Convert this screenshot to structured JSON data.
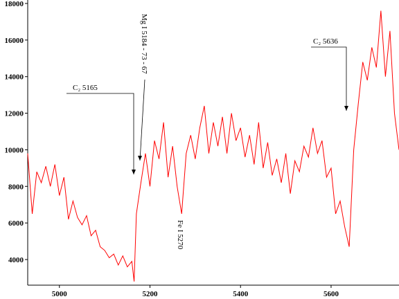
{
  "chart_data": {
    "type": "line",
    "x": [
      4930,
      4940,
      4950,
      4960,
      4970,
      4980,
      4990,
      5000,
      5010,
      5020,
      5030,
      5040,
      5050,
      5060,
      5070,
      5080,
      5090,
      5100,
      5110,
      5120,
      5130,
      5140,
      5150,
      5160,
      5165,
      5170,
      5180,
      5190,
      5200,
      5210,
      5220,
      5230,
      5240,
      5250,
      5260,
      5270,
      5280,
      5290,
      5300,
      5310,
      5320,
      5330,
      5340,
      5350,
      5360,
      5370,
      5380,
      5390,
      5400,
      5410,
      5420,
      5430,
      5440,
      5450,
      5460,
      5470,
      5480,
      5490,
      5500,
      5510,
      5520,
      5530,
      5540,
      5550,
      5560,
      5570,
      5580,
      5590,
      5600,
      5610,
      5620,
      5630,
      5640,
      5650,
      5660,
      5670,
      5680,
      5690,
      5700,
      5710,
      5720,
      5730,
      5740,
      5750
    ],
    "series": [
      {
        "color": "#ff0000",
        "values": [
          9800,
          6500,
          8800,
          8200,
          9100,
          8000,
          9200,
          7500,
          8500,
          6200,
          7200,
          6300,
          5900,
          6400,
          5300,
          5600,
          4700,
          4500,
          4100,
          4300,
          3700,
          4200,
          3600,
          3900,
          2800,
          6500,
          8200,
          9800,
          8000,
          10500,
          9500,
          11500,
          8500,
          10200,
          8000,
          6500,
          9800,
          10800,
          9500,
          11200,
          12400,
          9800,
          11500,
          10200,
          11800,
          9800,
          12000,
          10500,
          11200,
          9600,
          10800,
          9200,
          11500,
          9000,
          10400,
          8600,
          9500,
          8200,
          9800,
          7600,
          9400,
          8800,
          10200,
          9600,
          11200,
          9800,
          10500,
          8500,
          9000,
          6500,
          7200,
          5800,
          4700,
          10000,
          12500,
          14800,
          13800,
          15600,
          14500,
          17600,
          14000,
          16500,
          12000,
          10000
        ]
      }
    ],
    "xlim": [
      4930,
      5750
    ],
    "xticks": [
      5000,
      5200,
      5400,
      5600
    ],
    "ylim": [
      2600,
      18000
    ],
    "yticks": [
      4000,
      6000,
      8000,
      10000,
      12000,
      14000,
      16000,
      18000
    ],
    "annotations": [
      "C₂ 5165",
      "Mg I  5184 - 73 - 67",
      "Fe I  5270",
      "C₂ 5636"
    ]
  }
}
